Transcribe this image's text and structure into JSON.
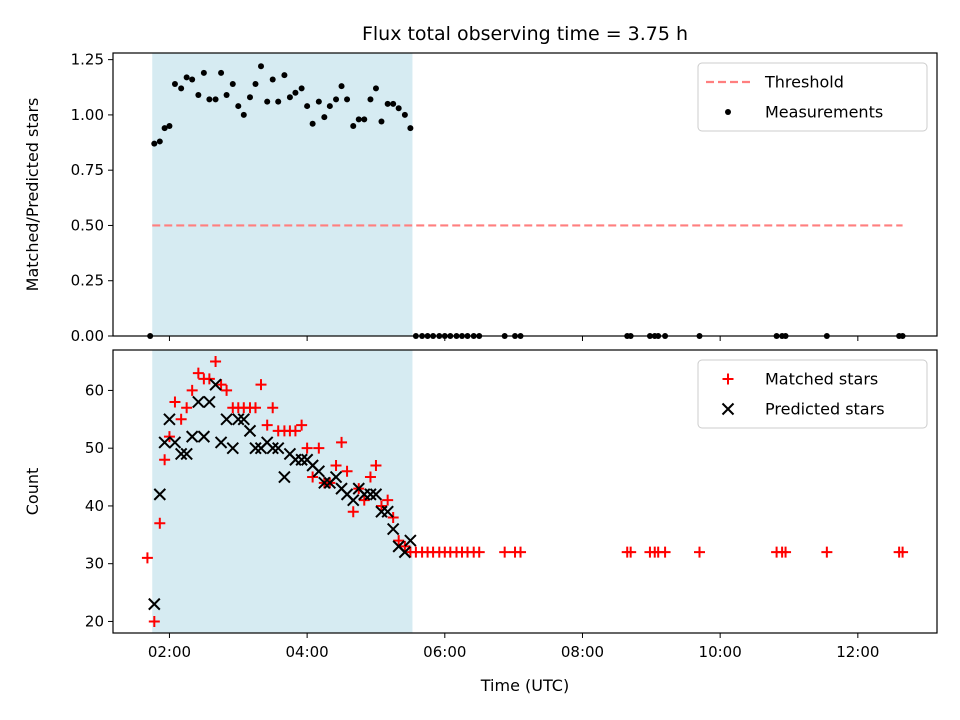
{
  "chart_data": [
    {
      "panel": "top",
      "type": "scatter",
      "title": "Flux total observing time = 3.75 h",
      "xlabel": "",
      "ylabel": "Matched/Predicted stars",
      "xlim": [
        1.18,
        13.15
      ],
      "ylim": [
        0.0,
        1.28
      ],
      "yticks": [
        0.0,
        0.25,
        0.5,
        0.75,
        1.0,
        1.25
      ],
      "ytick_labels": [
        "0.00",
        "0.25",
        "0.50",
        "0.75",
        "1.00",
        "1.25"
      ],
      "xticks": [
        2,
        4,
        6,
        8,
        10,
        12
      ],
      "xtick_labels": [],
      "shaded_region": {
        "x0": 1.75,
        "x1": 5.53,
        "color": "#add8e6"
      },
      "legend_position": "upper right",
      "threshold": {
        "name": "Threshold",
        "y": 0.5,
        "x": [
          1.75,
          12.65
        ],
        "color": "#ff7f7f",
        "style": "dashed"
      },
      "series": [
        {
          "name": "Measurements",
          "marker": "dot",
          "color": "#000000",
          "x": [
            1.72,
            1.78,
            1.86,
            1.93,
            2.0,
            2.08,
            2.17,
            2.25,
            2.33,
            2.42,
            2.5,
            2.58,
            2.67,
            2.75,
            2.83,
            2.92,
            3.0,
            3.08,
            3.17,
            3.25,
            3.33,
            3.42,
            3.5,
            3.58,
            3.67,
            3.75,
            3.83,
            3.92,
            4.0,
            4.08,
            4.17,
            4.25,
            4.33,
            4.42,
            4.5,
            4.58,
            4.67,
            4.75,
            4.83,
            4.92,
            5.0,
            5.08,
            5.17,
            5.25,
            5.33,
            5.42,
            5.5,
            5.58,
            5.67,
            5.75,
            5.83,
            5.92,
            6.0,
            6.08,
            6.17,
            6.25,
            6.33,
            6.42,
            6.5,
            6.87,
            7.02,
            7.1,
            8.65,
            8.7,
            8.98,
            9.05,
            9.1,
            9.2,
            9.7,
            10.82,
            10.9,
            10.95,
            11.55,
            12.6,
            12.65
          ],
          "y": [
            0.0,
            0.87,
            0.88,
            0.94,
            0.95,
            1.14,
            1.12,
            1.17,
            1.16,
            1.09,
            1.19,
            1.07,
            1.07,
            1.19,
            1.09,
            1.14,
            1.04,
            1.0,
            1.08,
            1.14,
            1.22,
            1.06,
            1.16,
            1.06,
            1.18,
            1.08,
            1.1,
            1.12,
            1.04,
            0.96,
            1.06,
            0.99,
            1.04,
            1.07,
            1.13,
            1.07,
            0.95,
            0.98,
            0.98,
            1.07,
            1.12,
            0.97,
            1.05,
            1.05,
            1.03,
            1.0,
            0.94,
            0.0,
            0.0,
            0.0,
            0.0,
            0.0,
            0.0,
            0.0,
            0.0,
            0.0,
            0.0,
            0.0,
            0.0,
            0.0,
            0.0,
            0.0,
            0.0,
            0.0,
            0.0,
            0.0,
            0.0,
            0.0,
            0.0,
            0.0,
            0.0,
            0.0,
            0.0,
            0.0,
            0.0
          ]
        }
      ]
    },
    {
      "panel": "bottom",
      "type": "scatter",
      "title": "",
      "xlabel": "Time (UTC)",
      "ylabel": "Count",
      "xlim": [
        1.18,
        13.15
      ],
      "ylim": [
        18.0,
        67.0
      ],
      "yticks": [
        20,
        30,
        40,
        50,
        60
      ],
      "ytick_labels": [
        "20",
        "30",
        "40",
        "50",
        "60"
      ],
      "xticks": [
        2,
        4,
        6,
        8,
        10,
        12
      ],
      "xtick_labels": [
        "02:00",
        "04:00",
        "06:00",
        "08:00",
        "10:00",
        "12:00"
      ],
      "shaded_region": {
        "x0": 1.75,
        "x1": 5.53,
        "color": "#add8e6"
      },
      "legend_position": "upper right",
      "series": [
        {
          "name": "Matched stars",
          "marker": "plus",
          "color": "#ff0000",
          "x": [
            1.68,
            1.78,
            1.86,
            1.93,
            2.0,
            2.08,
            2.17,
            2.25,
            2.33,
            2.42,
            2.5,
            2.58,
            2.67,
            2.75,
            2.83,
            2.92,
            3.0,
            3.08,
            3.17,
            3.25,
            3.33,
            3.42,
            3.5,
            3.58,
            3.67,
            3.75,
            3.83,
            3.92,
            4.0,
            4.08,
            4.17,
            4.25,
            4.33,
            4.42,
            4.5,
            4.58,
            4.67,
            4.75,
            4.83,
            4.92,
            5.0,
            5.08,
            5.17,
            5.25,
            5.33,
            5.42,
            5.5,
            5.58,
            5.67,
            5.75,
            5.83,
            5.92,
            6.0,
            6.08,
            6.17,
            6.25,
            6.33,
            6.42,
            6.5,
            6.87,
            7.02,
            7.1,
            8.65,
            8.7,
            8.98,
            9.05,
            9.1,
            9.2,
            9.7,
            10.82,
            10.9,
            10.95,
            11.55,
            12.6,
            12.65
          ],
          "y": [
            31,
            20,
            37,
            48,
            52,
            58,
            55,
            57,
            60,
            63,
            62,
            62,
            65,
            61,
            60,
            57,
            57,
            57,
            57,
            57,
            61,
            54,
            57,
            53,
            53,
            53,
            53,
            54,
            50,
            45,
            50,
            44,
            44,
            47,
            51,
            46,
            39,
            43,
            41,
            45,
            47,
            40,
            41,
            38,
            34,
            33,
            32,
            32,
            32,
            32,
            32,
            32,
            32,
            32,
            32,
            32,
            32,
            32,
            32,
            32,
            32,
            32,
            32,
            32,
            32,
            32,
            32,
            32,
            32,
            32,
            32,
            32,
            32,
            32,
            32
          ]
        },
        {
          "name": "Predicted stars",
          "marker": "x",
          "color": "#000000",
          "x": [
            1.78,
            1.86,
            1.93,
            2.0,
            2.08,
            2.17,
            2.25,
            2.33,
            2.42,
            2.5,
            2.58,
            2.67,
            2.75,
            2.83,
            2.92,
            3.0,
            3.08,
            3.17,
            3.25,
            3.33,
            3.42,
            3.5,
            3.58,
            3.67,
            3.75,
            3.83,
            3.92,
            4.0,
            4.08,
            4.17,
            4.25,
            4.33,
            4.42,
            4.5,
            4.58,
            4.67,
            4.75,
            4.83,
            4.92,
            5.0,
            5.08,
            5.17,
            5.25,
            5.33,
            5.42,
            5.5
          ],
          "y": [
            23,
            42,
            51,
            55,
            51,
            49,
            49,
            52,
            58,
            52,
            58,
            61,
            51,
            55,
            50,
            55,
            55,
            53,
            50,
            50,
            51,
            50,
            50,
            45,
            49,
            48,
            48,
            48,
            47,
            46,
            44,
            44,
            45,
            43,
            42,
            41,
            43,
            42,
            42,
            42,
            39,
            39,
            36,
            33,
            32,
            34
          ]
        }
      ]
    }
  ]
}
